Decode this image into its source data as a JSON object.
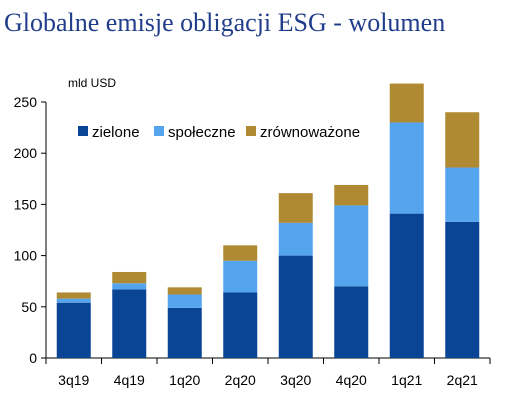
{
  "title": "Globalne emisje obligacji ESG - wolumen",
  "chart_data": {
    "type": "bar",
    "stacked": true,
    "unit_label": "mld USD",
    "categories": [
      "3q19",
      "4q19",
      "1q20",
      "2q20",
      "3q20",
      "4q20",
      "1q21",
      "2q21"
    ],
    "series": [
      {
        "name": "zielone",
        "color": "#0a4595",
        "values": [
          54,
          67,
          49,
          64,
          100,
          70,
          141,
          133
        ]
      },
      {
        "name": "społeczne",
        "color": "#55a5ee",
        "values": [
          4,
          6,
          13,
          31,
          32,
          79,
          89,
          53
        ]
      },
      {
        "name": "zrównoważone",
        "color": "#b08a33",
        "values": [
          6,
          11,
          7,
          15,
          29,
          20,
          38,
          54
        ]
      }
    ],
    "ylim": [
      0,
      250
    ],
    "yticks": [
      0,
      50,
      100,
      150,
      200,
      250
    ],
    "grid": false,
    "legend_position": "top-left"
  }
}
